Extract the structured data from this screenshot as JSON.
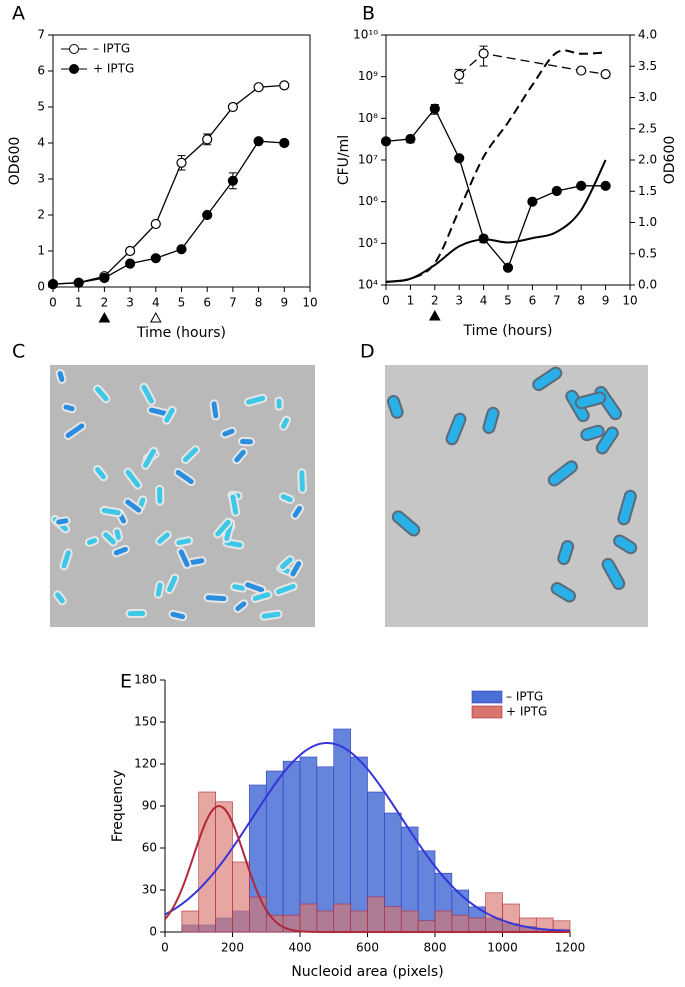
{
  "chart_data": [
    {
      "label": "A",
      "type": "line",
      "xlabel": "Time (hours)",
      "ylabel": "OD600",
      "xlim": [
        0,
        10
      ],
      "xticks": [
        0,
        1,
        2,
        3,
        4,
        5,
        6,
        7,
        8,
        9,
        10
      ],
      "ylim": [
        0,
        7
      ],
      "yticks": [
        0,
        1,
        2,
        3,
        4,
        5,
        6,
        7
      ],
      "x": [
        0,
        1,
        2,
        3,
        4,
        5,
        6,
        7,
        8,
        9
      ],
      "series": [
        {
          "name": "– IPTG",
          "color": "#000000",
          "marker": "open",
          "linestyle": "solid",
          "values": [
            0.08,
            0.12,
            0.3,
            1.0,
            1.75,
            3.45,
            4.1,
            5.0,
            5.55,
            5.6
          ],
          "errors": [
            null,
            null,
            0.06,
            null,
            null,
            0.2,
            0.15,
            null,
            null,
            null
          ]
        },
        {
          "name": "+ IPTG",
          "color": "#000000",
          "marker": "filled",
          "linestyle": "solid",
          "values": [
            0.08,
            0.12,
            0.25,
            0.65,
            0.8,
            1.05,
            2.0,
            2.95,
            4.05,
            4.0
          ],
          "errors": [
            null,
            null,
            null,
            null,
            null,
            null,
            null,
            0.22,
            null,
            null
          ]
        }
      ],
      "legend": "upper left",
      "arrows": [
        {
          "x": 2,
          "fill": true
        },
        {
          "x": 4,
          "fill": false
        }
      ]
    },
    {
      "label": "B",
      "type": "line",
      "xlabel": "Time (hours)",
      "ylabel": "CFU/ml",
      "y2label": "OD600",
      "xlim": [
        0,
        10
      ],
      "xticks": [
        0,
        1,
        2,
        3,
        4,
        5,
        6,
        7,
        8,
        9,
        10
      ],
      "ylog": true,
      "ylim": [
        10000,
        10000000000
      ],
      "yticks": [
        {
          "value": 10000,
          "label": "10⁴"
        },
        {
          "value": 100000,
          "label": "10⁵"
        },
        {
          "value": 1000000,
          "label": "10⁶"
        },
        {
          "value": 10000000,
          "label": "10⁷"
        },
        {
          "value": 100000000,
          "label": "10⁸"
        },
        {
          "value": 1000000000,
          "label": "10⁹"
        },
        {
          "value": 10000000000,
          "label": "10¹⁰"
        }
      ],
      "y2lim": [
        0,
        4
      ],
      "y2ticks": [
        {
          "value": 0,
          "label": "0.0"
        },
        {
          "value": 0.5,
          "label": "0.5"
        },
        {
          "value": 1,
          "label": "1.0"
        },
        {
          "value": 1.5,
          "label": "1.5"
        },
        {
          "value": 2,
          "label": "2.0"
        },
        {
          "value": 2.5,
          "label": "2.5"
        },
        {
          "value": 3,
          "label": "3.0"
        },
        {
          "value": 3.5,
          "label": "3.5"
        },
        {
          "value": 4,
          "label": "4.0"
        }
      ],
      "series": [
        {
          "color": "#000000",
          "marker": "filled",
          "linestyle": "solid",
          "x": [
            0,
            1,
            2,
            3,
            4,
            5,
            6,
            7,
            8,
            9
          ],
          "values": [
            28000000,
            32000000,
            170000000,
            11000000,
            130000,
            26000,
            1000000,
            1800000,
            2400000,
            2400000
          ],
          "errors": [
            null,
            6000000,
            45000000,
            null,
            25000,
            null,
            null,
            null,
            null,
            null
          ]
        },
        {
          "color": "#000000",
          "marker": "open",
          "linestyle": "dashed",
          "x": [
            3,
            4,
            8,
            9
          ],
          "values": [
            1100000000,
            3600000000,
            1400000000,
            1150000000
          ],
          "errors": [
            400000000,
            1800000000,
            null,
            150000000
          ]
        },
        {
          "color": "#000000",
          "marker": "none",
          "linestyle": "dashed",
          "smooth": true,
          "axis": "y2",
          "x": [
            0,
            1,
            2,
            3,
            4,
            5,
            6,
            7,
            8,
            9
          ],
          "values": [
            0.05,
            0.1,
            0.35,
            1.2,
            2.05,
            2.6,
            3.2,
            3.72,
            3.7,
            3.72
          ]
        },
        {
          "color": "#000000",
          "marker": "none",
          "linestyle": "solid",
          "smooth": true,
          "axis": "y2",
          "x": [
            0,
            1,
            2,
            3,
            4,
            5,
            6,
            7,
            8,
            9
          ],
          "values": [
            0.05,
            0.1,
            0.32,
            0.62,
            0.73,
            0.68,
            0.75,
            0.85,
            1.2,
            2.0
          ]
        }
      ],
      "arrows": [
        {
          "x": 2,
          "fill": true
        }
      ]
    },
    {
      "label": "E",
      "type": "histogram",
      "xlabel": "Nucleoid area (pixels)",
      "ylabel": "Frequency",
      "xlim": [
        0,
        1200
      ],
      "xticks": [
        0,
        200,
        400,
        600,
        800,
        1000,
        1200
      ],
      "ylim": [
        0,
        180
      ],
      "yticks": [
        0,
        30,
        60,
        90,
        120,
        150,
        180
      ],
      "bins": [
        50,
        100,
        150,
        200,
        250,
        300,
        350,
        400,
        450,
        500,
        550,
        600,
        650,
        700,
        750,
        800,
        850,
        900,
        950,
        1000,
        1050,
        1100,
        1150,
        1200
      ],
      "series": [
        {
          "name": "– IPTG",
          "color": "#4a6fd6",
          "edgecolor": "#2f3fbf",
          "values": [
            5,
            5,
            10,
            15,
            105,
            115,
            122,
            125,
            118,
            145,
            125,
            100,
            85,
            75,
            58,
            42,
            30,
            18,
            10,
            6,
            4,
            2,
            2
          ]
        },
        {
          "name": "+ IPTG",
          "color": "#d9776f",
          "edgecolor": "#b0283a",
          "values": [
            15,
            100,
            93,
            50,
            25,
            12,
            12,
            20,
            15,
            20,
            15,
            25,
            18,
            15,
            8,
            15,
            12,
            10,
            28,
            20,
            10,
            10,
            8
          ]
        }
      ],
      "fits": [
        {
          "color": "#3535d8",
          "peak": 135,
          "mean": 480,
          "sd": 220
        },
        {
          "color": "#b0283a",
          "peak": 90,
          "mean": 160,
          "sd": 75
        }
      ],
      "legend": "upper right"
    }
  ],
  "images": [
    {
      "label": "C"
    },
    {
      "label": "D"
    }
  ]
}
